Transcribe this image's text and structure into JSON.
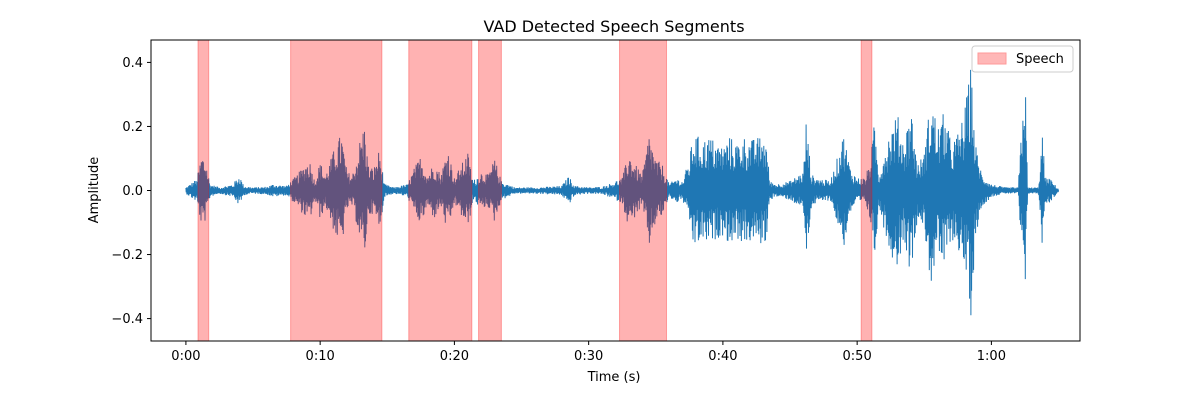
{
  "chart_data": {
    "type": "line",
    "title": "VAD Detected Speech Segments",
    "xlabel": "Time (s)",
    "ylabel": "Amplitude",
    "xlim": [
      -2.6,
      66.6
    ],
    "ylim": [
      -0.47,
      0.47
    ],
    "x_ticks": [
      {
        "value": 0,
        "label": "0:00"
      },
      {
        "value": 10,
        "label": "0:10"
      },
      {
        "value": 20,
        "label": "0:20"
      },
      {
        "value": 30,
        "label": "0:30"
      },
      {
        "value": 40,
        "label": "0:40"
      },
      {
        "value": 50,
        "label": "0:50"
      },
      {
        "value": 60,
        "label": "1:00"
      }
    ],
    "y_ticks": [
      {
        "value": 0.4,
        "label": "0.4"
      },
      {
        "value": 0.2,
        "label": "0.2"
      },
      {
        "value": 0.0,
        "label": "0.0"
      },
      {
        "value": -0.2,
        "label": "−0.2"
      },
      {
        "value": -0.4,
        "label": "−0.4"
      }
    ],
    "legend": {
      "location": "top-right",
      "entries": [
        {
          "label": "Speech",
          "color": "#ff9999"
        }
      ]
    },
    "speech_segments": [
      {
        "start": 0.9,
        "end": 1.7
      },
      {
        "start": 7.8,
        "end": 14.6
      },
      {
        "start": 16.6,
        "end": 21.3
      },
      {
        "start": 21.8,
        "end": 23.5
      },
      {
        "start": 32.3,
        "end": 35.8
      },
      {
        "start": 50.3,
        "end": 51.1
      }
    ],
    "waveform": {
      "color": "#1f77b4",
      "duration": 65.0,
      "envelope": [
        [
          0.0,
          0.01
        ],
        [
          0.6,
          0.03
        ],
        [
          0.8,
          0.035
        ],
        [
          1.2,
          0.12
        ],
        [
          1.5,
          0.09
        ],
        [
          1.8,
          0.02
        ],
        [
          2.5,
          0.01
        ],
        [
          3.0,
          0.015
        ],
        [
          3.5,
          0.02
        ],
        [
          4.0,
          0.05
        ],
        [
          4.3,
          0.015
        ],
        [
          5.0,
          0.01
        ],
        [
          6.0,
          0.012
        ],
        [
          6.5,
          0.02
        ],
        [
          7.5,
          0.015
        ],
        [
          8.3,
          0.05
        ],
        [
          8.8,
          0.08
        ],
        [
          9.2,
          0.1
        ],
        [
          9.6,
          0.03
        ],
        [
          10.0,
          0.09
        ],
        [
          10.4,
          0.05
        ],
        [
          10.8,
          0.1
        ],
        [
          11.2,
          0.15
        ],
        [
          11.6,
          0.18
        ],
        [
          12.0,
          0.06
        ],
        [
          12.4,
          0.05
        ],
        [
          12.8,
          0.12
        ],
        [
          13.0,
          0.17
        ],
        [
          13.3,
          0.21
        ],
        [
          13.6,
          0.08
        ],
        [
          14.0,
          0.07
        ],
        [
          14.4,
          0.13
        ],
        [
          14.8,
          0.02
        ],
        [
          15.5,
          0.01
        ],
        [
          16.5,
          0.02
        ],
        [
          17.0,
          0.07
        ],
        [
          17.5,
          0.11
        ],
        [
          18.0,
          0.05
        ],
        [
          18.5,
          0.09
        ],
        [
          19.0,
          0.05
        ],
        [
          19.5,
          0.14
        ],
        [
          20.0,
          0.04
        ],
        [
          20.5,
          0.08
        ],
        [
          21.0,
          0.12
        ],
        [
          21.4,
          0.03
        ],
        [
          22.0,
          0.06
        ],
        [
          22.5,
          0.05
        ],
        [
          23.0,
          0.1
        ],
        [
          23.5,
          0.03
        ],
        [
          24.5,
          0.01
        ],
        [
          26.0,
          0.01
        ],
        [
          27.0,
          0.012
        ],
        [
          28.0,
          0.015
        ],
        [
          28.5,
          0.045
        ],
        [
          29.0,
          0.015
        ],
        [
          30.0,
          0.01
        ],
        [
          31.0,
          0.012
        ],
        [
          31.5,
          0.02
        ],
        [
          32.5,
          0.04
        ],
        [
          33.0,
          0.12
        ],
        [
          33.5,
          0.08
        ],
        [
          34.0,
          0.05
        ],
        [
          34.5,
          0.18
        ],
        [
          35.0,
          0.1
        ],
        [
          35.5,
          0.08
        ],
        [
          36.0,
          0.02
        ],
        [
          36.5,
          0.04
        ],
        [
          37.0,
          0.03
        ],
        [
          37.5,
          0.1
        ],
        [
          37.8,
          0.18
        ],
        [
          38.5,
          0.16
        ],
        [
          39.0,
          0.17
        ],
        [
          39.6,
          0.15
        ],
        [
          40.0,
          0.14
        ],
        [
          40.5,
          0.17
        ],
        [
          41.0,
          0.15
        ],
        [
          41.6,
          0.17
        ],
        [
          42.2,
          0.16
        ],
        [
          42.8,
          0.17
        ],
        [
          43.2,
          0.17
        ],
        [
          43.5,
          0.03
        ],
        [
          44.0,
          0.02
        ],
        [
          45.0,
          0.03
        ],
        [
          46.0,
          0.06
        ],
        [
          46.2,
          0.22
        ],
        [
          46.6,
          0.05
        ],
        [
          47.0,
          0.04
        ],
        [
          48.0,
          0.03
        ],
        [
          48.5,
          0.1
        ],
        [
          49.0,
          0.18
        ],
        [
          49.5,
          0.07
        ],
        [
          50.0,
          0.04
        ],
        [
          50.6,
          0.04
        ],
        [
          51.0,
          0.1
        ],
        [
          51.3,
          0.22
        ],
        [
          51.6,
          0.05
        ],
        [
          52.0,
          0.12
        ],
        [
          52.5,
          0.2
        ],
        [
          53.0,
          0.24
        ],
        [
          53.5,
          0.15
        ],
        [
          54.0,
          0.27
        ],
        [
          54.5,
          0.08
        ],
        [
          55.0,
          0.12
        ],
        [
          55.5,
          0.3
        ],
        [
          56.0,
          0.2
        ],
        [
          56.5,
          0.25
        ],
        [
          57.0,
          0.15
        ],
        [
          57.5,
          0.18
        ],
        [
          58.0,
          0.25
        ],
        [
          58.5,
          0.4
        ],
        [
          58.8,
          0.15
        ],
        [
          59.3,
          0.05
        ],
        [
          60.0,
          0.02
        ],
        [
          61.0,
          0.01
        ],
        [
          62.0,
          0.01
        ],
        [
          62.5,
          0.4
        ],
        [
          62.7,
          0.01
        ],
        [
          63.5,
          0.01
        ],
        [
          63.8,
          0.18
        ],
        [
          64.0,
          0.04
        ],
        [
          64.3,
          0.04
        ],
        [
          65.0,
          0.005
        ]
      ]
    }
  }
}
